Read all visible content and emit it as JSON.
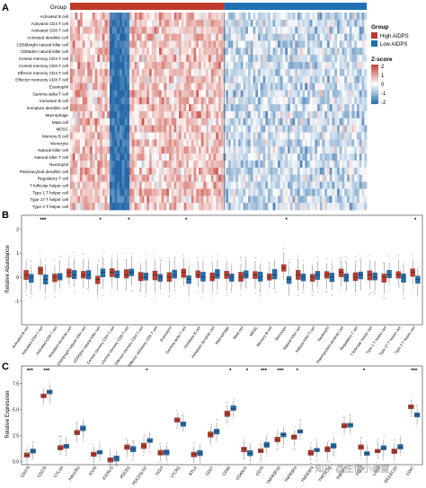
{
  "watermark": "知乎 @生信小课堂",
  "colors": {
    "high": "#c0392b",
    "low": "#1f6fb2",
    "z_high": "#c33a2f",
    "z_mid": "#ffffff",
    "z_low": "#2468a8"
  },
  "chart_data": [
    {
      "panel": "A",
      "type": "heatmap",
      "annotation_label": "Group",
      "legend_title": "Group",
      "legend": [
        "High AIDPS",
        "Low AIDPS"
      ],
      "colorbar_title": "Z-score",
      "colorbar_ticks": [
        "2",
        "1",
        "0",
        "-1",
        "-2"
      ],
      "colorbar_range": [
        -2,
        2
      ],
      "rows": [
        "Activated B cell",
        "Activated CD4 T cell",
        "Activated CD8 T cell",
        "Activated dendritic cell",
        "CD56bright natural killer cell",
        "CD56dim natural killer cell",
        "Central memory CD4 T cell",
        "Central memory CD8 T cell",
        "Effector memory CD4 T cell",
        "Effector memeory CD8 T cell",
        "Eosinophil",
        "Gamma delta T cell",
        "Immature B cell",
        "Immature dendritic cell",
        "Macrophage",
        "Mast cell",
        "MDSC",
        "Memory B cell",
        "Monocyte",
        "Natural killer cell",
        "Natural killer T cell",
        "Neutrophil",
        "Plasmacytoid dendritic cell",
        "Regulatory T cell",
        "T follicular helper cell",
        "Type 1 T helper cell",
        "Type 17 T helper cell",
        "Type 2 T helper cell"
      ],
      "groups": {
        "High AIDPS": 0.52,
        "Low AIDPS": 0.48
      }
    },
    {
      "panel": "B",
      "type": "box",
      "ylabel": "Relative Abundance",
      "yticks": [
        "2",
        "1",
        "0",
        "-1"
      ],
      "ylim": [
        -2,
        2.6
      ],
      "categories": [
        "Activated B cell",
        "Activated CD4 T cell",
        "Activated CD8 T cell",
        "Activated dendritic cell",
        "CD56bright natural killer cell",
        "CD56dim natural killer cell",
        "Central memory CD4 T cell",
        "Central memory CD8 T cell",
        "Effector memory CD4 T cell",
        "Effector memeory CD8 T cell",
        "Eosinophil",
        "Gamma delta T cell",
        "Immature B cell",
        "Immature dendritic cell",
        "Macrophage",
        "Mast cell",
        "MDSC",
        "Memory B cell",
        "Monocyte",
        "Natural killer cell",
        "Natural killer T cell",
        "Neutrophil",
        "Plasmacytoid dendritic cell",
        "Regulatory T cell",
        "T follicular helper cell",
        "Type 1 T helper cell",
        "Type 17 T helper cell",
        "Type 2 T helper cell"
      ],
      "significance": [
        "",
        "***",
        "",
        "",
        "",
        "*",
        "",
        "*",
        "",
        "",
        "",
        "*",
        "",
        "",
        "",
        "",
        "",
        "",
        "*",
        "",
        "",
        "",
        "",
        "",
        "",
        "",
        "",
        "*"
      ],
      "series": [
        {
          "name": "High AIDPS",
          "medians": [
            0.1,
            0.3,
            0.0,
            0.2,
            0.1,
            -0.1,
            0.2,
            0.1,
            0.0,
            0.1,
            0.0,
            0.2,
            0.1,
            0.0,
            0.1,
            0.0,
            0.1,
            0.0,
            0.4,
            0.1,
            0.0,
            0.1,
            0.2,
            0.0,
            0.1,
            0.0,
            0.1,
            0.2
          ]
        },
        {
          "name": "Low AIDPS",
          "medians": [
            0.0,
            -0.1,
            0.0,
            0.1,
            0.1,
            0.2,
            0.1,
            0.2,
            0.0,
            0.0,
            0.1,
            -0.1,
            0.0,
            0.1,
            0.0,
            0.1,
            0.0,
            0.1,
            -0.1,
            0.0,
            0.1,
            0.0,
            0.0,
            0.1,
            0.0,
            0.1,
            0.0,
            -0.1
          ]
        }
      ]
    },
    {
      "panel": "C",
      "type": "box",
      "ylabel": "Relative Expression",
      "yticks": [
        "7.5",
        "5.0",
        "2.5",
        "0.0"
      ],
      "ylim": [
        -0.3,
        9.2
      ],
      "categories": [
        "CD274",
        "CD276",
        "CTLA4",
        "HAVCR2",
        "ICOS",
        "ICOSLG",
        "PDCD1",
        "PDCD1LG2",
        "TIGIT",
        "VTCN1",
        "BTLA",
        "CD27",
        "CD40",
        "CD40LG",
        "CD70",
        "TNFRSF18",
        "TNFRSF4",
        "TNFRSF9",
        "TNFSF14",
        "TNFSF4",
        "FGL1",
        "LAG3",
        "SIGLEC15",
        "CD47"
      ],
      "significance": [
        "***",
        "***",
        "",
        "",
        "",
        "",
        "",
        "*",
        "",
        "",
        "",
        "",
        "*",
        "*",
        "***",
        "***",
        "*",
        "",
        "",
        "",
        "*",
        "",
        "",
        "***"
      ],
      "series": [
        {
          "name": "High AIDPS",
          "medians": [
            0.6,
            6.3,
            1.3,
            2.8,
            0.7,
            0.2,
            1.4,
            1.5,
            0.8,
            4.0,
            0.7,
            2.6,
            4.6,
            1.2,
            1.0,
            2.1,
            2.4,
            0.8,
            1.2,
            3.4,
            1.4,
            1.0,
            1.0,
            5.3
          ]
        },
        {
          "name": "Low AIDPS",
          "medians": [
            1.0,
            6.7,
            1.5,
            3.2,
            0.9,
            0.3,
            1.2,
            2.0,
            0.9,
            3.6,
            0.8,
            2.9,
            5.1,
            0.8,
            1.6,
            2.6,
            2.9,
            1.1,
            1.5,
            3.5,
            0.8,
            1.3,
            1.4,
            4.5
          ]
        }
      ]
    }
  ]
}
